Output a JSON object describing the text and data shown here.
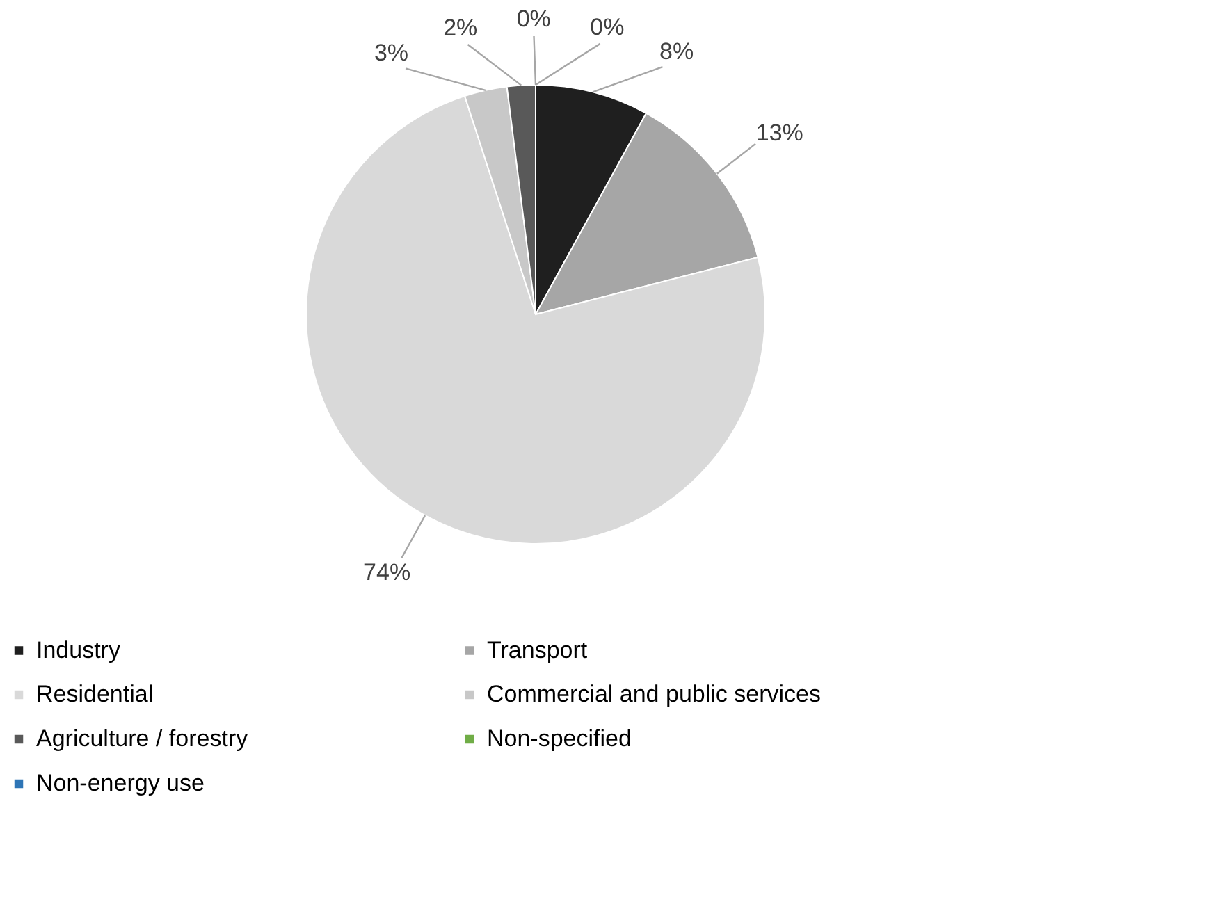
{
  "chart_data": {
    "type": "pie",
    "categories": [
      "Industry",
      "Transport",
      "Residential",
      "Commercial and public services",
      "Agriculture / forestry",
      "Non-specified",
      "Non-energy use"
    ],
    "values": [
      8,
      13,
      74,
      3,
      2,
      0,
      0
    ],
    "colors": [
      "#1f1f1f",
      "#a6a6a6",
      "#d9d9d9",
      "#c8c8c8",
      "#595959",
      "#70ad47",
      "#2e75b6"
    ],
    "value_labels": [
      "8%",
      "13%",
      "74%",
      "3%",
      "2%",
      "0%",
      "0%"
    ],
    "legend": "bottom"
  }
}
